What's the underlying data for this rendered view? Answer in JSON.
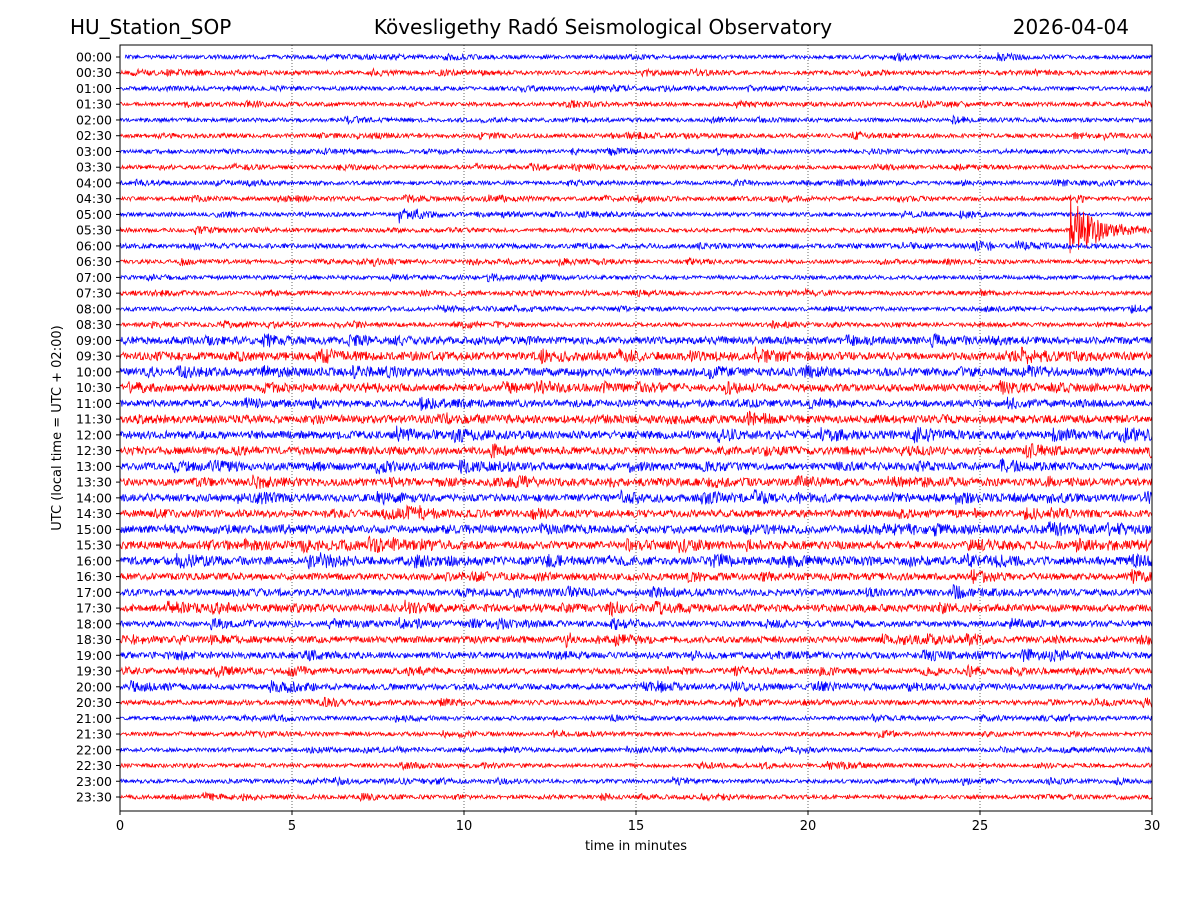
{
  "header": {
    "station": "HU_Station_SOP",
    "observatory": "Kövesligethy Radó Seismological Observatory",
    "date": "2026-04-04"
  },
  "chart_data": {
    "type": "line",
    "title": "Kövesligethy Radó Seismological Observatory",
    "xlabel": "time in minutes",
    "ylabel": "UTC (local time = UTC + 02:00)",
    "xlim": [
      0,
      30
    ],
    "xticks": [
      "0",
      "5",
      "10",
      "15",
      "20",
      "25",
      "30"
    ],
    "grid": "vertical dotted at x ticks",
    "row_labels": [
      "00:00",
      "00:30",
      "01:00",
      "01:30",
      "02:00",
      "02:30",
      "03:00",
      "03:30",
      "04:00",
      "04:30",
      "05:00",
      "05:30",
      "06:00",
      "06:30",
      "07:00",
      "07:30",
      "08:00",
      "08:30",
      "09:00",
      "09:30",
      "10:00",
      "10:30",
      "11:00",
      "11:30",
      "12:00",
      "12:30",
      "13:00",
      "13:30",
      "14:00",
      "14:30",
      "15:00",
      "15:30",
      "16:00",
      "16:30",
      "17:00",
      "17:30",
      "18:00",
      "18:30",
      "19:00",
      "19:30",
      "20:00",
      "20:30",
      "21:00",
      "21:30",
      "22:00",
      "22:30",
      "23:00",
      "23:30"
    ],
    "colors": [
      "#0000ff",
      "#ff0000"
    ],
    "noise_level": [
      1,
      1,
      1,
      1,
      1,
      1,
      1,
      1,
      1,
      1,
      1,
      1,
      1.2,
      1,
      1,
      1,
      1,
      1,
      1.8,
      2,
      2,
      1.8,
      1.7,
      2,
      2,
      1.8,
      1.8,
      1.8,
      1.8,
      1.8,
      2,
      2,
      2,
      1.7,
      1.7,
      1.8,
      1.5,
      1.6,
      1.6,
      1.4,
      1.5,
      1.2,
      1,
      1,
      1,
      1,
      1,
      1
    ],
    "events": [
      {
        "row": "05:00",
        "start_min": 8.1,
        "duration_min": 1.6,
        "amplitude": 7
      },
      {
        "row": "05:30",
        "start_min": 27.6,
        "duration_min": 2.4,
        "amplitude": 35
      }
    ]
  }
}
